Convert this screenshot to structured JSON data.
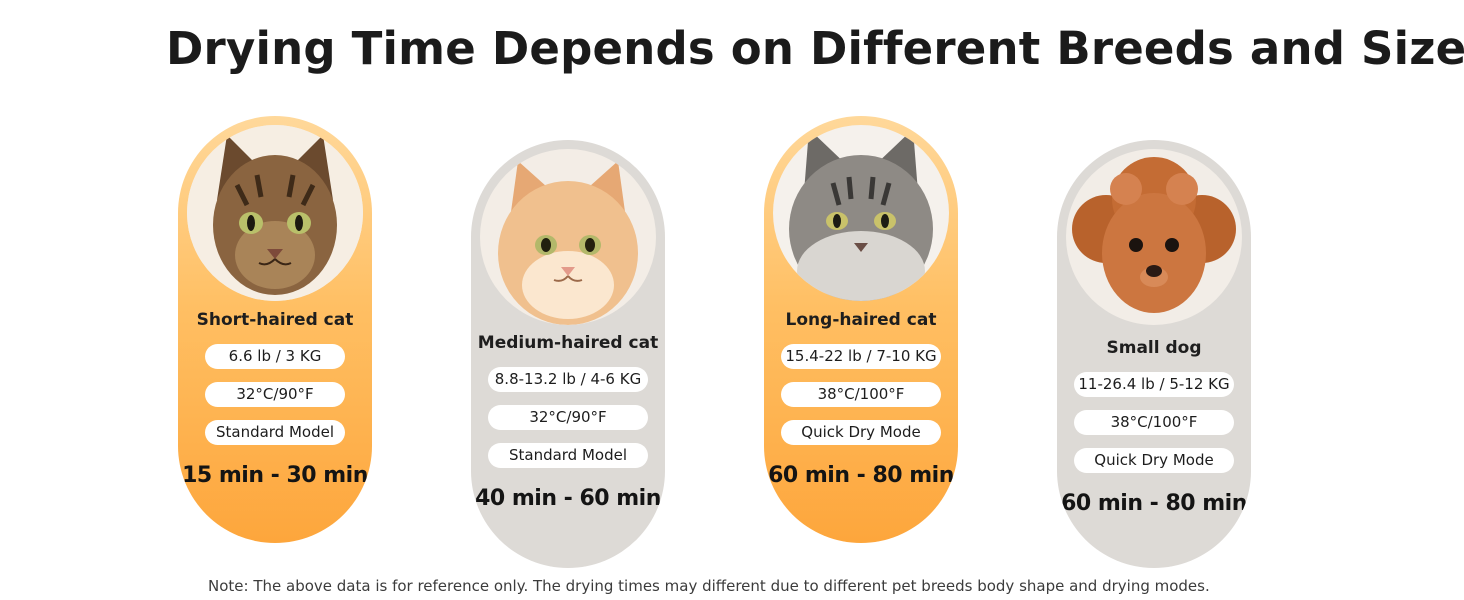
{
  "title": "Drying Time Depends on Different Breeds and Sizes",
  "cards": [
    {
      "name": "Short-haired cat",
      "weight": "6.6 lb / 3 KG",
      "temp": "32°C/90°F",
      "mode": "Standard Model",
      "time": "15 min - 30 min",
      "style": "orange"
    },
    {
      "name": "Medium-haired cat",
      "weight": "8.8-13.2 lb / 4-6 KG",
      "temp": "32°C/90°F",
      "mode": "Standard Model",
      "time": "40 min - 60 min",
      "style": "gray"
    },
    {
      "name": "Long-haired cat",
      "weight": "15.4-22 lb / 7-10 KG",
      "temp": "38°C/100°F",
      "mode": "Quick Dry Mode",
      "time": "60 min - 80 min",
      "style": "orange"
    },
    {
      "name": "Small dog",
      "weight": "11-26.4 lb / 5-12 KG",
      "temp": "38°C/100°F",
      "mode": "Quick Dry Mode",
      "time": "60 min - 80 min",
      "style": "gray"
    }
  ],
  "note": "Note: The above data is for reference only. The drying times may different due to different pet breeds body shape and drying modes.",
  "colors": {
    "orange_top": "#ffd89a",
    "orange_bottom": "#fda63c",
    "gray": "#dddad6",
    "pill": "#ffffff"
  }
}
